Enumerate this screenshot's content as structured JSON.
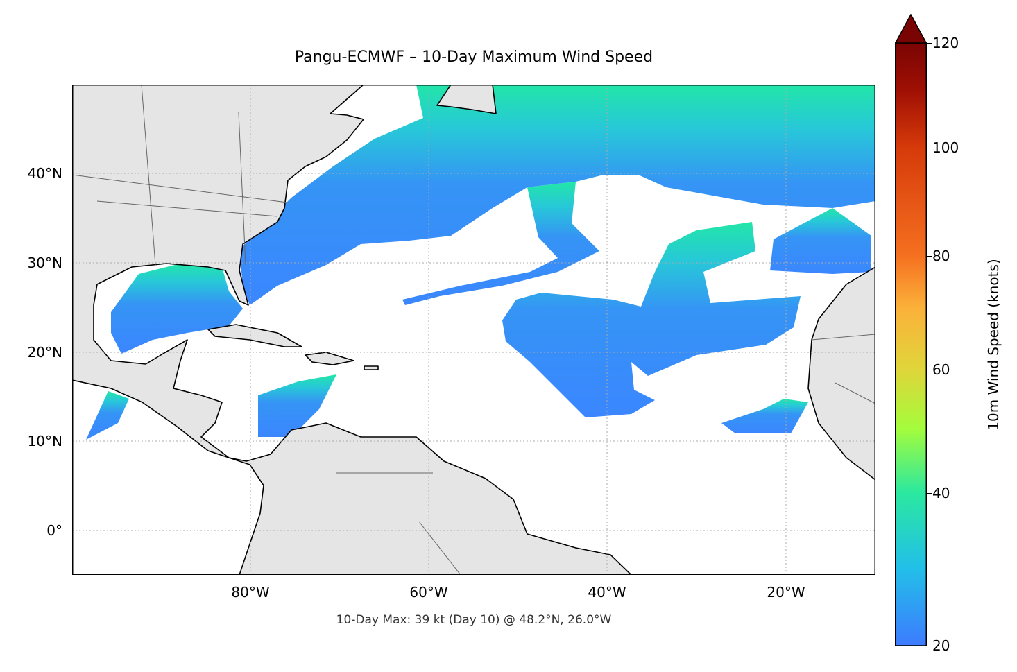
{
  "title": "Pangu-ECMWF – 10-Day Maximum Wind Speed",
  "map": {
    "extent": {
      "lon_min": -100,
      "lon_max": -10,
      "lat_min": -5,
      "lat_max": 50
    },
    "land_color": "#e5e5e5",
    "coastline_color": "#000000",
    "border_color": "#666666",
    "gridlines": "dotted",
    "lon_labels": [
      "80°W",
      "60°W",
      "40°W",
      "20°W"
    ],
    "lat_labels": [
      "40°N",
      "30°N",
      "20°N",
      "10°N",
      "0°"
    ]
  },
  "footer": "10-Day Max: 39 kt (Day 10) @ 48.2°N, 26.0°W",
  "colorbar": {
    "label": "10m Wind Speed (knots)",
    "ticks": [
      "20",
      "40",
      "60",
      "80",
      "100",
      "120"
    ],
    "range": [
      20,
      120
    ],
    "extend": "max",
    "colormap": [
      "#3d7bff",
      "#22c0e8",
      "#2ae8a0",
      "#a4fc3c",
      "#e0d53a",
      "#fbb13a",
      "#f57020",
      "#d63a0a",
      "#a01004",
      "#7a0403"
    ]
  }
}
